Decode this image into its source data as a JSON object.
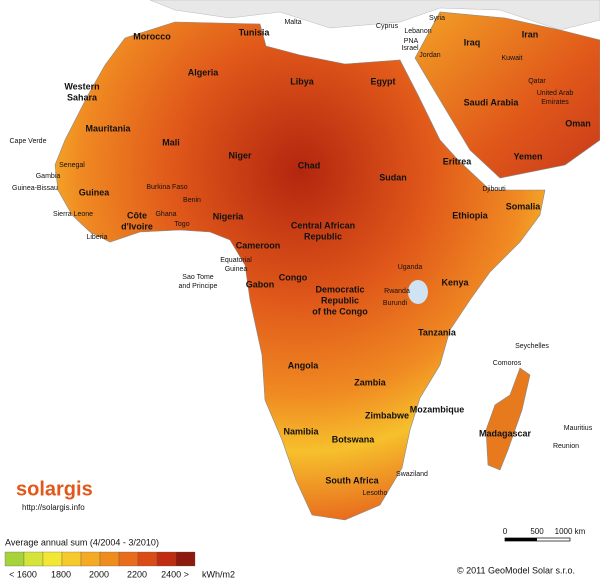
{
  "countries": [
    [
      "Morocco"
    ],
    [
      "Tunisia"
    ],
    [
      "Malta"
    ],
    [
      "Cyprus"
    ],
    [
      "Syria"
    ],
    [
      "Lebanon"
    ],
    [
      "PNA"
    ],
    [
      "Israel"
    ],
    [
      "Jordan"
    ],
    [
      "Iraq"
    ],
    [
      "Iran"
    ],
    [
      "Kuwait"
    ],
    [
      "Qatar"
    ],
    [
      "United Arab",
      "Emirates"
    ],
    [
      "Oman"
    ],
    [
      "Saudi Arabia"
    ],
    [
      "Yemen"
    ],
    [
      "Algeria"
    ],
    [
      "Libya"
    ],
    [
      "Egypt"
    ],
    [
      "Western",
      "Sahara"
    ],
    [
      "Mauritania"
    ],
    [
      "Mali"
    ],
    [
      "Niger"
    ],
    [
      "Chad"
    ],
    [
      "Sudan"
    ],
    [
      "Eritrea"
    ],
    [
      "Djibouti"
    ],
    [
      "Somalia"
    ],
    [
      "Ethiopia"
    ],
    [
      "Cape Verde"
    ],
    [
      "Senegal"
    ],
    [
      "Gambia"
    ],
    [
      "Guinea-Bissau"
    ],
    [
      "Guinea"
    ],
    [
      "Burkina Faso"
    ],
    [
      "Benin"
    ],
    [
      "Ghana"
    ],
    [
      "Togo"
    ],
    [
      "Sierra Leone"
    ],
    [
      "Liberia"
    ],
    [
      "Côte",
      "d'Ivoire"
    ],
    [
      "Nigeria"
    ],
    [
      "Central African",
      "Republic"
    ],
    [
      "Cameroon"
    ],
    [
      "Equatorial",
      "Guinea"
    ],
    [
      "Sao Tome",
      "and Principe"
    ],
    [
      "Gabon"
    ],
    [
      "Congo"
    ],
    [
      "Democratic",
      "Republic",
      "of the Congo"
    ],
    [
      "Uganda"
    ],
    [
      "Kenya"
    ],
    [
      "Rwanda"
    ],
    [
      "Burundi"
    ],
    [
      "Tanzania"
    ],
    [
      "Seychelles"
    ],
    [
      "Comoros"
    ],
    [
      "Angola"
    ],
    [
      "Zambia"
    ],
    [
      "Mozambique"
    ],
    [
      "Zimbabwe"
    ],
    [
      "Namibia"
    ],
    [
      "Botswana"
    ],
    [
      "Madagascar"
    ],
    [
      "Mauritius"
    ],
    [
      "Reunion"
    ],
    [
      "South Africa"
    ],
    [
      "Swaziland"
    ],
    [
      "Lesotho"
    ]
  ],
  "logo": {
    "name": "solargis",
    "url": "http://solargis.info"
  },
  "legend": {
    "title": "Average annual sum (4/2004 - 3/2010)",
    "labels": [
      "< 1600",
      "1800",
      "2000",
      "2200",
      "2400 >"
    ],
    "unit": "kWh/m2",
    "colors": [
      "#a6d23c",
      "#d6e33a",
      "#f3e635",
      "#f6ca2d",
      "#f4aa25",
      "#ef8c20",
      "#e86c1b",
      "#d94c17",
      "#bf2c12",
      "#8d1a0e"
    ]
  },
  "scale": [
    "0",
    "500",
    "1000 km"
  ],
  "copyright": "© 2011 GeoModel Solar s.r.o."
}
